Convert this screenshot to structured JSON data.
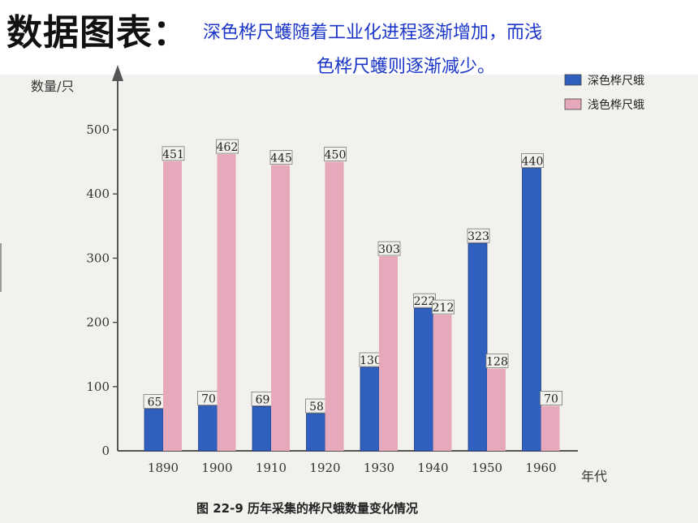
{
  "slide": {
    "title": "数据图表：",
    "subtitle_line1": "深色桦尺蠖随着工业化进程逐渐增加，而浅",
    "subtitle_line2": "色桦尺蠖则逐渐减少。"
  },
  "colors": {
    "dark_moth": "#2f5fbf",
    "light_moth": "#e6a9bb",
    "subtitle": "#1b36c8"
  },
  "chart_data": {
    "type": "bar",
    "caption": "图 22-9   历年采集的桦尺蛾数量变化情况",
    "ylabel": "数量/只",
    "xlabel": "年代",
    "categories": [
      "1890",
      "1900",
      "1910",
      "1920",
      "1930",
      "1940",
      "1950",
      "1960"
    ],
    "ylim": [
      0,
      500
    ],
    "yticks": [
      "0",
      "100",
      "200",
      "300",
      "400",
      "500"
    ],
    "legend": "top-right",
    "series": [
      {
        "name": "深色桦尺蛾",
        "color": "#2f5fbf",
        "values": [
          65,
          70,
          69,
          58,
          130,
          222,
          323,
          440
        ]
      },
      {
        "name": "浅色桦尺蛾",
        "color": "#e6a9bb",
        "values": [
          451,
          462,
          445,
          450,
          303,
          212,
          128,
          70
        ]
      }
    ]
  }
}
